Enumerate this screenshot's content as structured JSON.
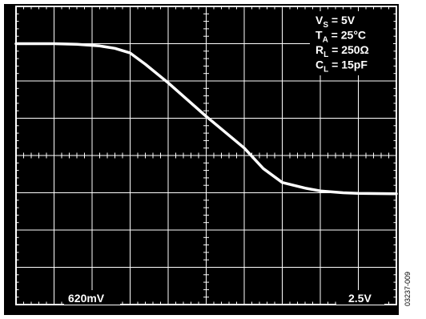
{
  "chart_data": {
    "type": "line",
    "grid": true,
    "divisions": {
      "x": 10,
      "y": 8
    },
    "colors": {
      "background": "#000000",
      "trace": "#ffffff",
      "grid": "#ffffff"
    },
    "conditions": [
      {
        "sym": "V",
        "sub": "S",
        "val": " = 5V"
      },
      {
        "sym": "T",
        "sub": "A",
        "val": " = 25°C"
      },
      {
        "sym": "R",
        "sub": "L",
        "val": " = 250Ω"
      },
      {
        "sym": "C",
        "sub": "L",
        "val": " = 15pF"
      }
    ],
    "scale_labels": {
      "vertical": "620mV",
      "horizontal": "2.5V"
    },
    "series": [
      {
        "x": [
          0,
          1.0,
          1.6,
          2.2,
          2.6,
          3.0,
          3.4,
          4.0,
          5.0,
          6.0,
          6.5,
          7.0,
          7.6,
          8.0,
          8.6,
          9.0,
          10.0
        ],
        "y": [
          6.0,
          6.0,
          5.97,
          5.88,
          5.75,
          5.5,
          4.9,
          3.9,
          2.1,
          0.4,
          -0.7,
          -1.45,
          -1.75,
          -1.9,
          -2.0,
          -2.03,
          -2.05
        ]
      }
    ]
  },
  "figure_id": "03237-009"
}
